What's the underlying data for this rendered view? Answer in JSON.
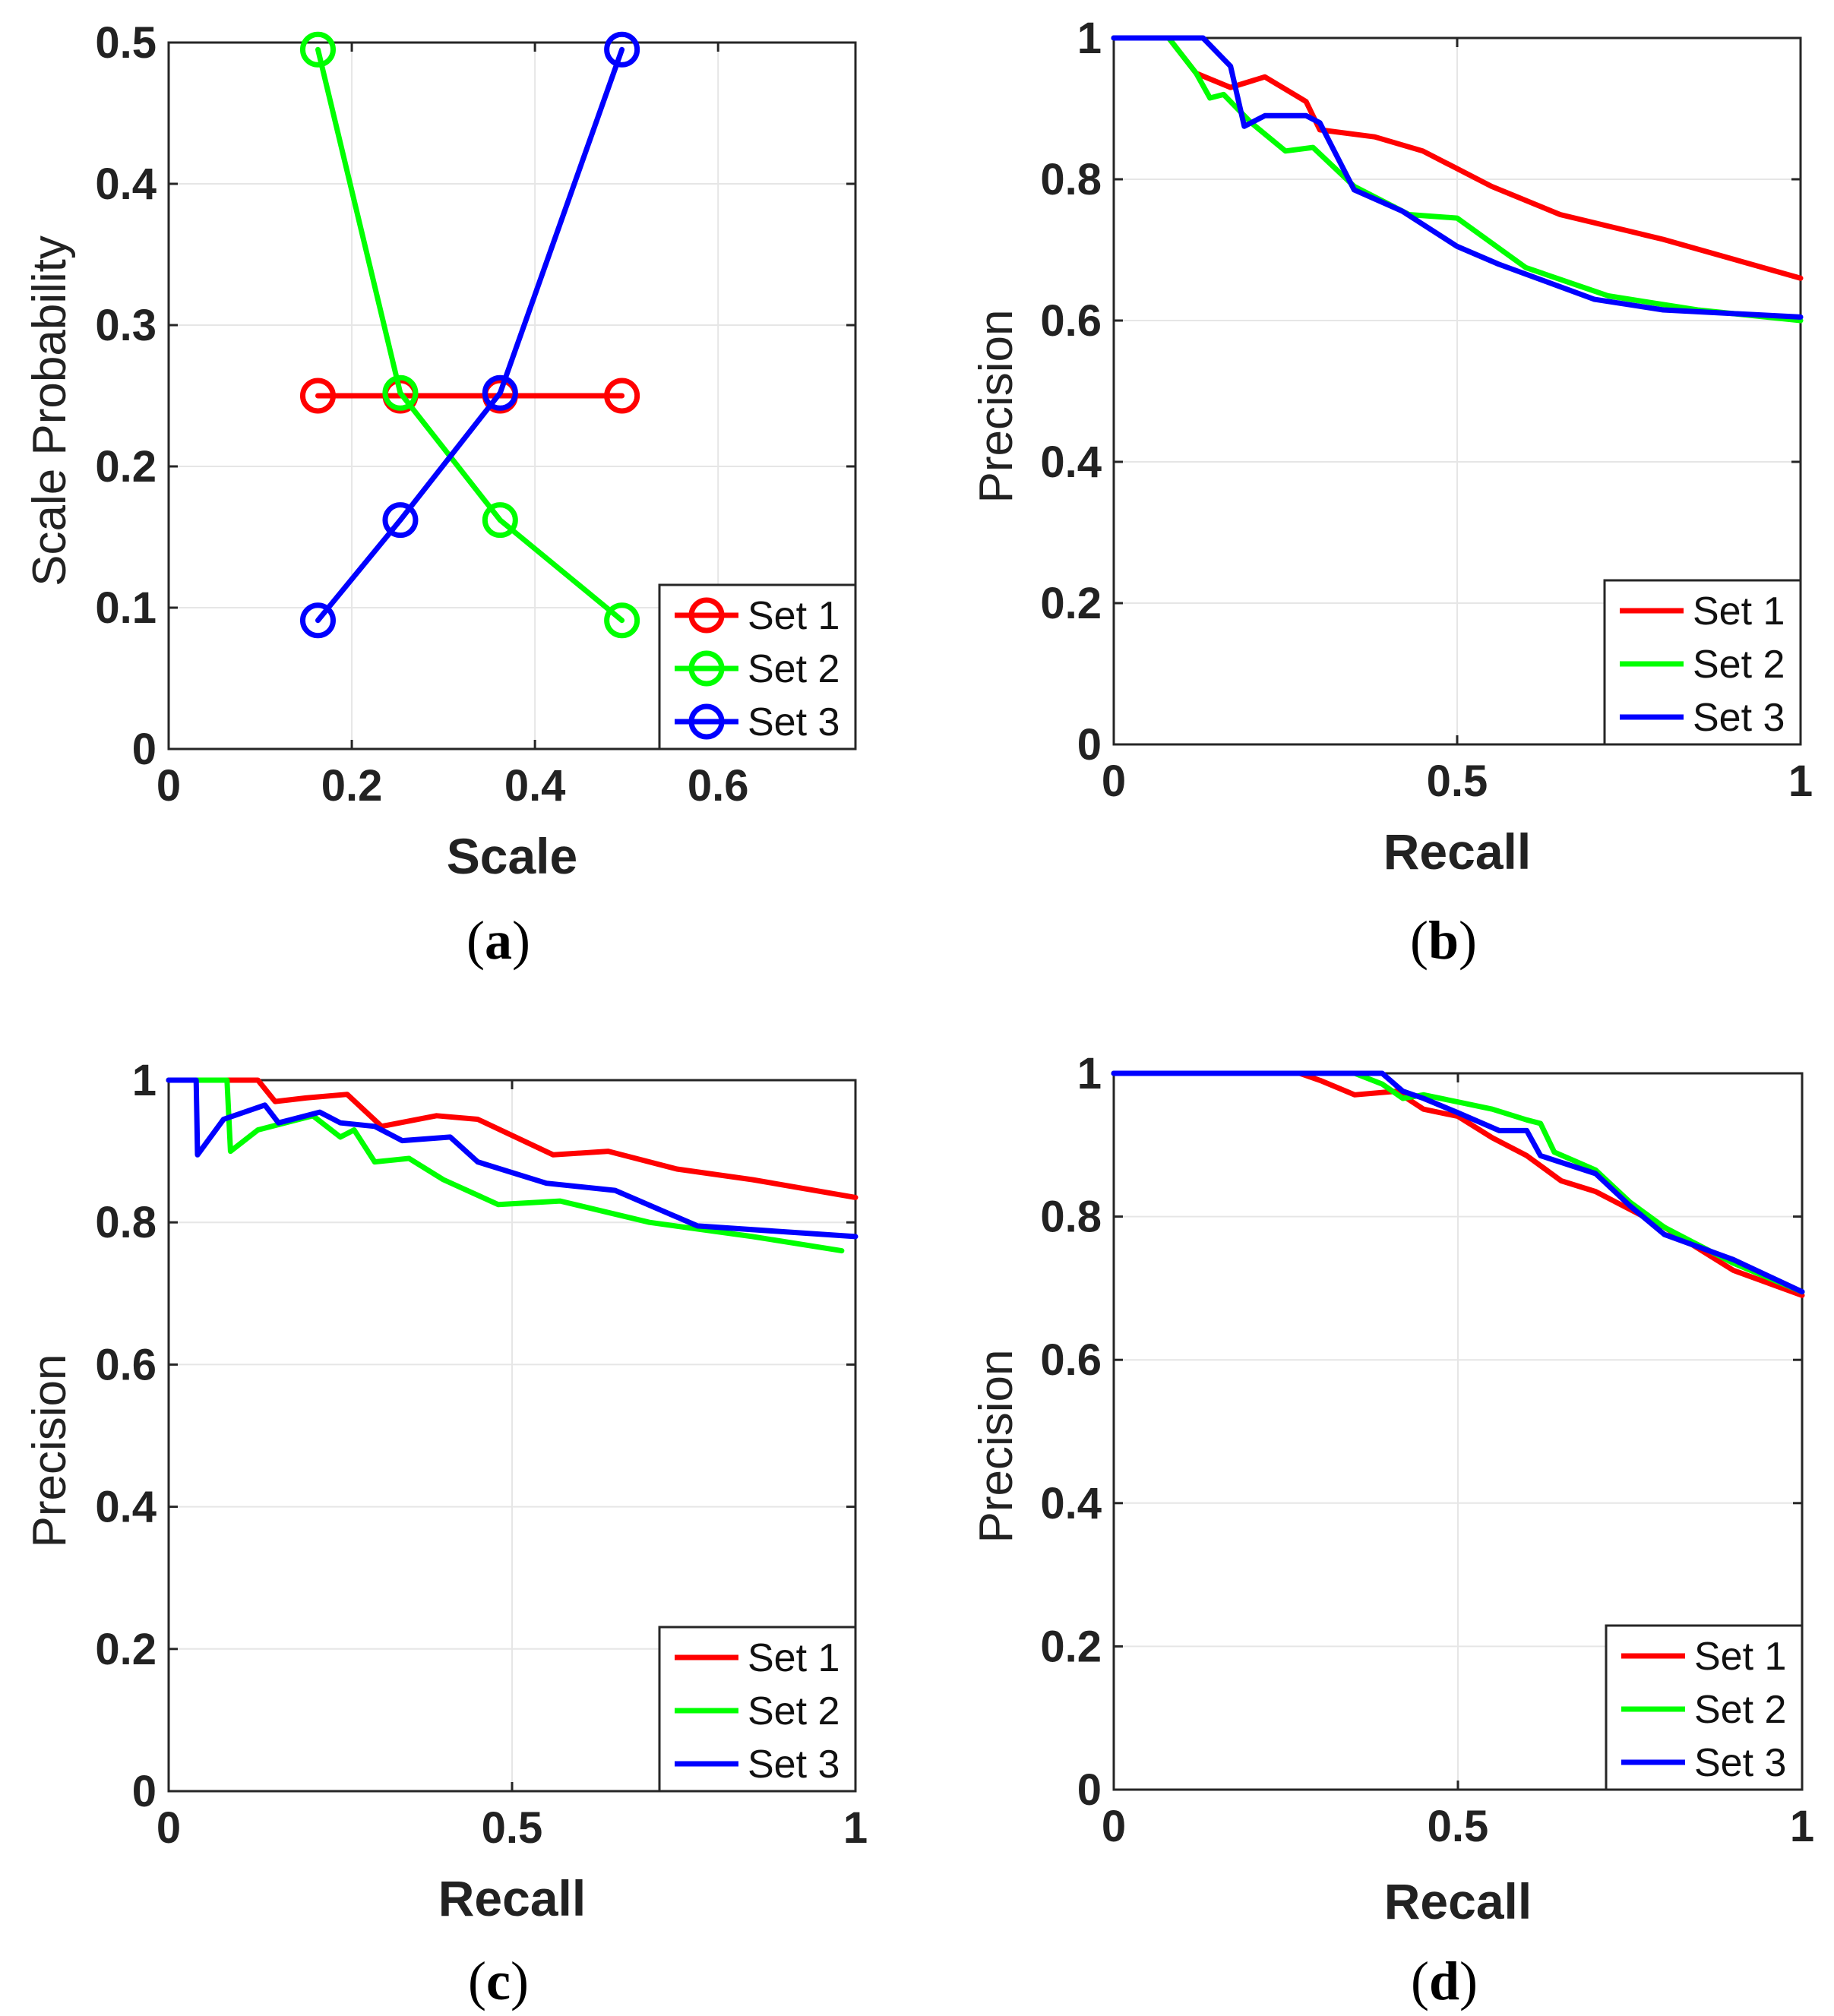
{
  "colors": {
    "set1": "#ff0000",
    "set2": "#00ff00",
    "set3": "#0000ff",
    "grid": "#e6e6e6",
    "axis": "#262626"
  },
  "chart_data": [
    {
      "id": "a",
      "type": "line",
      "markers": "circle",
      "caption": "a",
      "xlabel": "Scale",
      "ylabel": "Scale Probability",
      "xlim": [
        0,
        0.75
      ],
      "ylim": [
        0,
        0.5
      ],
      "xticks": [
        0,
        0.2,
        0.4,
        0.6
      ],
      "xtick_labels": [
        "0",
        "0.2",
        "0.4",
        "0.6"
      ],
      "yticks": [
        0,
        0.1,
        0.2,
        0.3,
        0.4,
        0.5
      ],
      "ytick_labels": [
        "0",
        "0.1",
        "0.2",
        "0.3",
        "0.4",
        "0.5"
      ],
      "grid": true,
      "legend": "bottom-right",
      "series": [
        {
          "name": "Set 1",
          "color": "#ff0000",
          "x": [
            0.163,
            0.253,
            0.362,
            0.495
          ],
          "y": [
            0.25,
            0.25,
            0.25,
            0.25
          ]
        },
        {
          "name": "Set 2",
          "color": "#00ff00",
          "x": [
            0.163,
            0.253,
            0.362,
            0.495
          ],
          "y": [
            0.495,
            0.252,
            0.162,
            0.091
          ]
        },
        {
          "name": "Set 3",
          "color": "#0000ff",
          "x": [
            0.163,
            0.253,
            0.362,
            0.495
          ],
          "y": [
            0.091,
            0.162,
            0.252,
            0.495
          ]
        }
      ]
    },
    {
      "id": "b",
      "type": "line",
      "caption": "b",
      "xlabel": "Recall",
      "ylabel": "Precision",
      "xlim": [
        0,
        1
      ],
      "ylim": [
        0,
        1
      ],
      "xticks": [
        0,
        0.5,
        1
      ],
      "xtick_labels": [
        "0",
        "0.5",
        "1"
      ],
      "yticks": [
        0,
        0.2,
        0.4,
        0.6,
        0.8,
        1
      ],
      "ytick_labels": [
        "0",
        "0.2",
        "0.4",
        "0.6",
        "0.8",
        "1"
      ],
      "grid": true,
      "legend": "bottom-right",
      "series": [
        {
          "name": "Set 1",
          "color": "#ff0000",
          "x": [
            0,
            0.08,
            0.12,
            0.17,
            0.22,
            0.28,
            0.3,
            0.38,
            0.45,
            0.55,
            0.65,
            0.8,
            1.0
          ],
          "y": [
            1,
            1,
            0.95,
            0.93,
            0.945,
            0.91,
            0.87,
            0.86,
            0.84,
            0.79,
            0.75,
            0.715,
            0.66
          ]
        },
        {
          "name": "Set 2",
          "color": "#00ff00",
          "x": [
            0,
            0.08,
            0.12,
            0.14,
            0.16,
            0.2,
            0.25,
            0.29,
            0.35,
            0.43,
            0.5,
            0.6,
            0.72,
            0.85,
            1.0
          ],
          "y": [
            1,
            1,
            0.95,
            0.915,
            0.92,
            0.88,
            0.84,
            0.845,
            0.79,
            0.75,
            0.745,
            0.675,
            0.635,
            0.615,
            0.6
          ]
        },
        {
          "name": "Set 3",
          "color": "#0000ff",
          "x": [
            0,
            0.13,
            0.17,
            0.19,
            0.22,
            0.28,
            0.3,
            0.35,
            0.42,
            0.5,
            0.56,
            0.7,
            0.8,
            1.0
          ],
          "y": [
            1,
            1,
            0.96,
            0.875,
            0.89,
            0.89,
            0.88,
            0.785,
            0.755,
            0.705,
            0.68,
            0.63,
            0.615,
            0.605
          ]
        }
      ]
    },
    {
      "id": "c",
      "type": "line",
      "caption": "c",
      "xlabel": "Recall",
      "ylabel": "Precision",
      "xlim": [
        0,
        1
      ],
      "ylim": [
        0,
        1
      ],
      "xticks": [
        0,
        0.5,
        1
      ],
      "xtick_labels": [
        "0",
        "0.5",
        "1"
      ],
      "yticks": [
        0,
        0.2,
        0.4,
        0.6,
        0.8,
        1
      ],
      "ytick_labels": [
        "0",
        "0.2",
        "0.4",
        "0.6",
        "0.8",
        "1"
      ],
      "grid": true,
      "legend": "bottom-right",
      "series": [
        {
          "name": "Set 1",
          "color": "#ff0000",
          "x": [
            0,
            0.13,
            0.155,
            0.2,
            0.26,
            0.31,
            0.39,
            0.45,
            0.56,
            0.64,
            0.74,
            0.85,
            1.0
          ],
          "y": [
            1,
            1,
            0.97,
            0.975,
            0.98,
            0.935,
            0.95,
            0.945,
            0.895,
            0.9,
            0.875,
            0.86,
            0.835
          ]
        },
        {
          "name": "Set 2",
          "color": "#00ff00",
          "x": [
            0,
            0.085,
            0.09,
            0.13,
            0.21,
            0.25,
            0.27,
            0.3,
            0.35,
            0.4,
            0.48,
            0.57,
            0.7,
            0.85,
            0.98
          ],
          "y": [
            1,
            1,
            0.9,
            0.93,
            0.95,
            0.92,
            0.93,
            0.885,
            0.89,
            0.86,
            0.825,
            0.83,
            0.8,
            0.78,
            0.76
          ]
        },
        {
          "name": "Set 3",
          "color": "#0000ff",
          "x": [
            0,
            0.04,
            0.042,
            0.08,
            0.14,
            0.16,
            0.22,
            0.25,
            0.3,
            0.34,
            0.41,
            0.45,
            0.55,
            0.65,
            0.77,
            1.0
          ],
          "y": [
            1,
            1,
            0.895,
            0.945,
            0.965,
            0.94,
            0.955,
            0.94,
            0.935,
            0.915,
            0.92,
            0.885,
            0.855,
            0.845,
            0.795,
            0.78
          ]
        }
      ]
    },
    {
      "id": "d",
      "type": "line",
      "caption": "d",
      "xlabel": "Recall",
      "ylabel": "Precision",
      "xlim": [
        0,
        1
      ],
      "ylim": [
        0,
        1
      ],
      "xticks": [
        0,
        0.5,
        1
      ],
      "xtick_labels": [
        "0",
        "0.5",
        "1"
      ],
      "yticks": [
        0,
        0.2,
        0.4,
        0.6,
        0.8,
        1
      ],
      "ytick_labels": [
        "0",
        "0.2",
        "0.4",
        "0.6",
        "0.8",
        "1"
      ],
      "grid": true,
      "legend": "bottom-right",
      "series": [
        {
          "name": "Set 1",
          "color": "#ff0000",
          "x": [
            0,
            0.27,
            0.3,
            0.35,
            0.41,
            0.45,
            0.5,
            0.55,
            0.6,
            0.65,
            0.7,
            0.75,
            0.8,
            0.9,
            1.0
          ],
          "y": [
            1,
            1,
            0.99,
            0.97,
            0.975,
            0.95,
            0.94,
            0.91,
            0.885,
            0.85,
            0.835,
            0.81,
            0.785,
            0.725,
            0.69
          ]
        },
        {
          "name": "Set 2",
          "color": "#00ff00",
          "x": [
            0,
            0.35,
            0.39,
            0.42,
            0.45,
            0.5,
            0.55,
            0.6,
            0.62,
            0.64,
            0.7,
            0.75,
            0.8,
            0.9,
            1.0
          ],
          "y": [
            1,
            1,
            0.985,
            0.965,
            0.97,
            0.96,
            0.95,
            0.935,
            0.93,
            0.89,
            0.865,
            0.82,
            0.785,
            0.735,
            0.695
          ]
        },
        {
          "name": "Set 3",
          "color": "#0000ff",
          "x": [
            0,
            0.39,
            0.42,
            0.45,
            0.5,
            0.56,
            0.6,
            0.62,
            0.7,
            0.75,
            0.8,
            0.9,
            1.0
          ],
          "y": [
            1,
            1,
            0.975,
            0.965,
            0.945,
            0.92,
            0.92,
            0.885,
            0.86,
            0.815,
            0.775,
            0.74,
            0.695
          ]
        }
      ]
    }
  ]
}
